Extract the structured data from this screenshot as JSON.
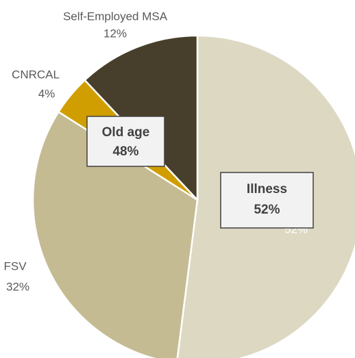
{
  "chart_data": {
    "type": "pie",
    "categories": [
      "Illness",
      "FSV",
      "CNRCAL",
      "Self-Employed MSA"
    ],
    "values": [
      52,
      32,
      4,
      12
    ],
    "value_labels": [
      "52%",
      "32%",
      "4%",
      "12%"
    ],
    "colors": [
      "#ddd8c2",
      "#c4bb93",
      "#d09e00",
      "#473f2b"
    ],
    "annotations": [
      {
        "text": "Old age",
        "value_label": "48%"
      },
      {
        "text": "Illness",
        "value_label": "52%"
      }
    ]
  }
}
